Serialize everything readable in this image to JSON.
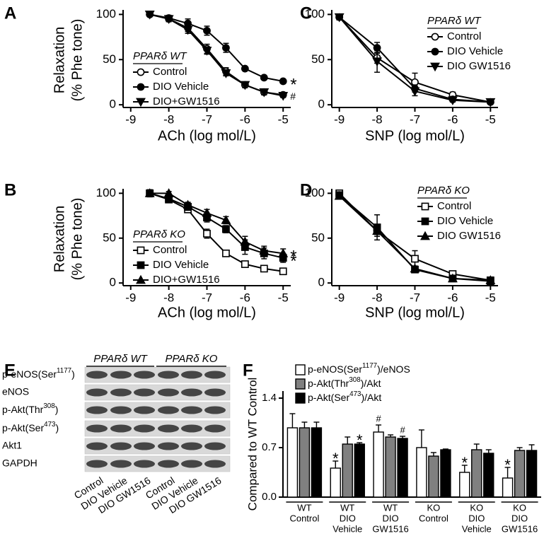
{
  "chart_data": [
    {
      "type": "line",
      "label": "A",
      "ylabel": [
        "Relaxation",
        "(% Phe tone)"
      ],
      "xlabel": "ACh (log mol/L)",
      "legend_title": "PPARδ WT",
      "x": [
        -8.5,
        -8,
        -7.5,
        -7,
        -6.5,
        -6,
        -5.5,
        -5
      ],
      "xlim": [
        -9.2,
        -4.8
      ],
      "ylim": [
        -3,
        105
      ],
      "xticks": [
        -9,
        -8,
        -7,
        -6,
        -5
      ],
      "yticks": [
        0,
        50,
        100
      ],
      "series": [
        {
          "name": "Control",
          "marker": "circle-open",
          "color": "#000000",
          "values": [
            100,
            95,
            85,
            62,
            37,
            22,
            14,
            11
          ],
          "errors": [
            2,
            3,
            4,
            5,
            4,
            3,
            3,
            2
          ]
        },
        {
          "name": "DIO Vehicle",
          "marker": "circle",
          "color": "#000000",
          "values": [
            100,
            96,
            90,
            82,
            63,
            40,
            30,
            26
          ],
          "errors": [
            2,
            3,
            5,
            5,
            5,
            2,
            2,
            2
          ],
          "end_label": "*"
        },
        {
          "name": "DIO+GW1516",
          "marker": "triangle-down",
          "color": "#000000",
          "values": [
            100,
            95,
            83,
            60,
            35,
            22,
            14,
            10
          ],
          "errors": [
            2,
            3,
            4,
            4,
            3,
            3,
            3,
            2
          ],
          "end_label": "#"
        }
      ]
    },
    {
      "type": "line",
      "label": "B",
      "ylabel": [
        "Relaxation",
        "(% Phe tone)"
      ],
      "xlabel": "ACh (log mol/L)",
      "legend_title": "PPARδ KO",
      "x": [
        -8.5,
        -8,
        -7.5,
        -7,
        -6.5,
        -6,
        -5.5,
        -5
      ],
      "xlim": [
        -9.2,
        -4.8
      ],
      "ylim": [
        -3,
        105
      ],
      "xticks": [
        -9,
        -8,
        -7,
        -6,
        -5
      ],
      "yticks": [
        0,
        50,
        100
      ],
      "series": [
        {
          "name": "Control",
          "marker": "square-open",
          "color": "#000000",
          "values": [
            100,
            93,
            82,
            55,
            33,
            21,
            16,
            13
          ],
          "errors": [
            2,
            3,
            3,
            5,
            3,
            2,
            2,
            2
          ]
        },
        {
          "name": "DIO Vehicle",
          "marker": "square",
          "color": "#000000",
          "values": [
            100,
            94,
            85,
            73,
            60,
            40,
            33,
            28
          ],
          "errors": [
            4,
            3,
            4,
            5,
            4,
            8,
            6,
            5
          ],
          "end_label": "*"
        },
        {
          "name": "DIO+GW1516",
          "marker": "triangle",
          "color": "#000000",
          "values": [
            100,
            100,
            87,
            78,
            70,
            46,
            36,
            33
          ],
          "errors": [
            2,
            2,
            3,
            4,
            4,
            6,
            5,
            5
          ],
          "end_label": "*"
        }
      ]
    },
    {
      "type": "line",
      "label": "C",
      "xlabel": "SNP (log mol/L)",
      "legend_title": "PPARδ WT",
      "x": [
        -9,
        -8,
        -7,
        -6,
        -5
      ],
      "xlim": [
        -9.2,
        -4.8
      ],
      "ylim": [
        -3,
        105
      ],
      "xticks": [
        -9,
        -8,
        -7,
        -6,
        -5
      ],
      "yticks": [
        0,
        50,
        100
      ],
      "series": [
        {
          "name": "Control",
          "marker": "circle-open",
          "color": "#000000",
          "values": [
            97,
            52,
            25,
            11,
            3
          ],
          "errors": [
            3,
            6,
            10,
            3,
            1
          ]
        },
        {
          "name": "DIO Vehicle",
          "marker": "circle",
          "color": "#000000",
          "values": [
            97,
            63,
            18,
            6,
            3
          ],
          "errors": [
            3,
            6,
            4,
            2,
            1
          ]
        },
        {
          "name": "DIO GW1516",
          "marker": "triangle-down",
          "color": "#000000",
          "values": [
            97,
            48,
            15,
            5,
            3
          ],
          "errors": [
            3,
            12,
            5,
            2,
            1
          ]
        }
      ]
    },
    {
      "type": "line",
      "label": "D",
      "xlabel": "SNP (log mol/L)",
      "legend_title": "PPARδ KO",
      "x": [
        -9,
        -8,
        -7,
        -6,
        -5
      ],
      "xlim": [
        -9.2,
        -4.8
      ],
      "ylim": [
        -3,
        105
      ],
      "xticks": [
        -9,
        -8,
        -7,
        -6,
        -5
      ],
      "yticks": [
        0,
        50,
        100
      ],
      "series": [
        {
          "name": "Control",
          "marker": "square-open",
          "color": "#000000",
          "values": [
            100,
            58,
            27,
            10,
            3
          ],
          "errors": [
            2,
            4,
            9,
            3,
            1
          ]
        },
        {
          "name": "DIO Vehicle",
          "marker": "square",
          "color": "#000000",
          "values": [
            98,
            62,
            15,
            5,
            2
          ],
          "errors": [
            2,
            14,
            3,
            2,
            1
          ]
        },
        {
          "name": "DIO GW1516",
          "marker": "triangle",
          "color": "#000000",
          "values": [
            97,
            58,
            16,
            5,
            3
          ],
          "errors": [
            2,
            6,
            3,
            2,
            1
          ]
        }
      ]
    },
    {
      "type": "blot",
      "label": "E",
      "groups": [
        "PPARδ WT",
        "PPARδ KO"
      ],
      "rows": [
        [
          "p-eNOS(Ser",
          "1177",
          ")"
        ],
        "eNOS",
        [
          "p-Akt(Thr",
          "308",
          ")"
        ],
        [
          "p-Akt(Ser",
          "473",
          ")"
        ],
        "Akt1",
        "GAPDH"
      ],
      "lanes": [
        "Control",
        "DIO Vehicle",
        "DIO GW1516",
        "Control",
        "DIO Vehicle",
        "DIO GW1516"
      ]
    },
    {
      "type": "bar",
      "label": "F",
      "ylabel": "Compared to WT Control",
      "categories": [
        [
          "WT",
          "Control"
        ],
        [
          "WT",
          "DIO",
          "Vehicle"
        ],
        [
          "WT",
          "DIO",
          "GW1516"
        ],
        [
          "KO",
          "Control"
        ],
        [
          "KO",
          "DIO",
          "Vehicle"
        ],
        [
          "KO",
          "DIO",
          "GW1516"
        ]
      ],
      "ylim": [
        0,
        1.5
      ],
      "yticks": [
        {
          "value": 0,
          "label": "0.0"
        },
        0.7,
        1.4
      ],
      "series": [
        {
          "name": [
            "p-eNOS(Ser",
            "1177",
            ")/eNOS"
          ],
          "color": "#ffffff",
          "values": [
            0.98,
            0.41,
            0.92,
            0.7,
            0.35,
            0.27
          ],
          "errors": [
            0.2,
            0.1,
            0.1,
            0.25,
            0.1,
            0.15
          ],
          "markers": [
            null,
            "*",
            "#",
            null,
            "*",
            "*"
          ]
        },
        {
          "name": [
            "p-Akt(Thr",
            "308",
            ")/Akt"
          ],
          "color": "#808080",
          "values": [
            0.98,
            0.75,
            0.85,
            0.58,
            0.67,
            0.66
          ],
          "errors": [
            0.08,
            0.1,
            0.03,
            0.05,
            0.08,
            0.04
          ],
          "markers": [
            null,
            null,
            null,
            null,
            null,
            null
          ]
        },
        {
          "name": [
            "p-Akt(Ser",
            "473",
            ")/Akt"
          ],
          "color": "#000000",
          "values": [
            0.98,
            0.75,
            0.83,
            0.67,
            0.62,
            0.66
          ],
          "errors": [
            0.08,
            0.02,
            0.03,
            0.01,
            0.05,
            0.08
          ],
          "markers": [
            null,
            "*",
            "#",
            null,
            null,
            null
          ]
        }
      ]
    }
  ]
}
